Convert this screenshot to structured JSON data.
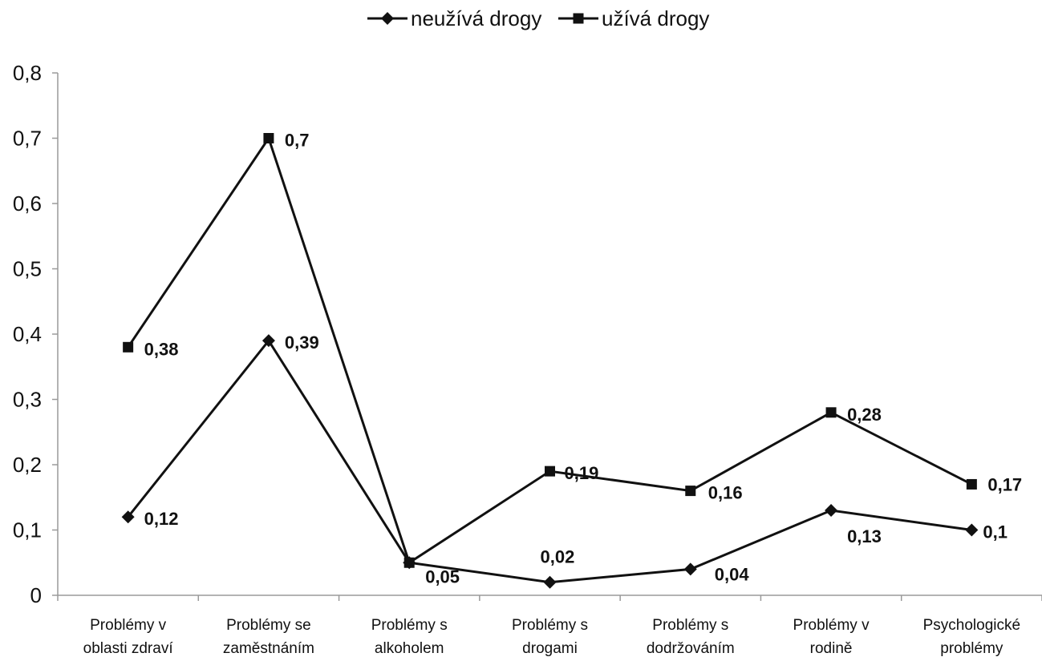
{
  "chart_data": {
    "type": "line",
    "title": "",
    "xlabel": "",
    "ylabel": "",
    "ylim": [
      0,
      0.8
    ],
    "yticks": [
      "0",
      "0,1",
      "0,2",
      "0,3",
      "0,4",
      "0,5",
      "0,6",
      "0,7",
      "0,8"
    ],
    "grid": false,
    "legend_position": "top-center",
    "categories": [
      [
        "Problémy v",
        "oblasti zdraví"
      ],
      [
        "Problémy se",
        "zaměstnáním"
      ],
      [
        "Problémy s",
        "alkoholem"
      ],
      [
        "Problémy s",
        "drogami"
      ],
      [
        "Problémy s",
        "dodržováním"
      ],
      [
        "Problémy v",
        "rodině"
      ],
      [
        "Psychologické",
        "problémy"
      ]
    ],
    "series": [
      {
        "name": "neužívá drogy",
        "marker": "diamond",
        "values": [
          0.12,
          0.39,
          0.05,
          0.02,
          0.04,
          0.13,
          0.1
        ],
        "labels": [
          "0,12",
          "0,39",
          "0,05",
          "0,02",
          "0,04",
          "0,13",
          "0,1"
        ]
      },
      {
        "name": "užívá drogy",
        "marker": "square",
        "values": [
          0.38,
          0.7,
          0.05,
          0.19,
          0.16,
          0.28,
          0.17
        ],
        "labels": [
          "0,38",
          "0,7",
          "",
          "0,19",
          "0,16",
          "0,28",
          "0,17"
        ]
      }
    ]
  }
}
